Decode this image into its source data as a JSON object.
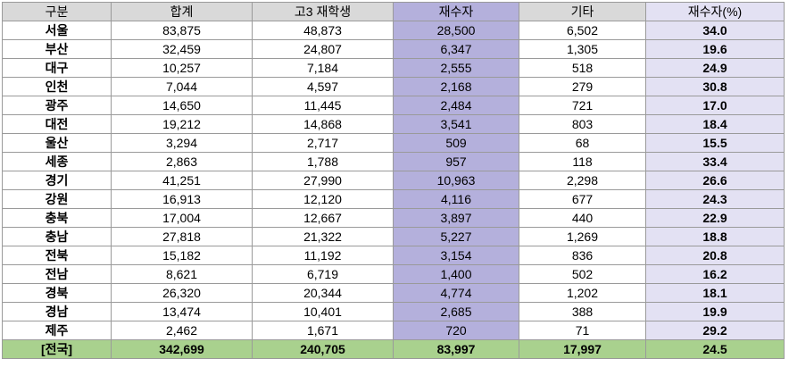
{
  "table": {
    "headers": [
      "구분",
      "합계",
      "고3 재학생",
      "재수자",
      "기타",
      "재수자(%)"
    ],
    "rows": [
      [
        "서울",
        "83,875",
        "48,873",
        "28,500",
        "6,502",
        "34.0"
      ],
      [
        "부산",
        "32,459",
        "24,807",
        "6,347",
        "1,305",
        "19.6"
      ],
      [
        "대구",
        "10,257",
        "7,184",
        "2,555",
        "518",
        "24.9"
      ],
      [
        "인천",
        "7,044",
        "4,597",
        "2,168",
        "279",
        "30.8"
      ],
      [
        "광주",
        "14,650",
        "11,445",
        "2,484",
        "721",
        "17.0"
      ],
      [
        "대전",
        "19,212",
        "14,868",
        "3,541",
        "803",
        "18.4"
      ],
      [
        "울산",
        "3,294",
        "2,717",
        "509",
        "68",
        "15.5"
      ],
      [
        "세종",
        "2,863",
        "1,788",
        "957",
        "118",
        "33.4"
      ],
      [
        "경기",
        "41,251",
        "27,990",
        "10,963",
        "2,298",
        "26.6"
      ],
      [
        "강원",
        "16,913",
        "12,120",
        "4,116",
        "677",
        "24.3"
      ],
      [
        "충북",
        "17,004",
        "12,667",
        "3,897",
        "440",
        "22.9"
      ],
      [
        "충남",
        "27,818",
        "21,322",
        "5,227",
        "1,269",
        "18.8"
      ],
      [
        "전북",
        "15,182",
        "11,192",
        "3,154",
        "836",
        "20.8"
      ],
      [
        "전남",
        "8,621",
        "6,719",
        "1,400",
        "502",
        "16.2"
      ],
      [
        "경북",
        "26,320",
        "20,344",
        "4,774",
        "1,202",
        "18.1"
      ],
      [
        "경남",
        "13,474",
        "10,401",
        "2,685",
        "388",
        "19.9"
      ],
      [
        "제주",
        "2,462",
        "1,671",
        "720",
        "71",
        "29.2"
      ]
    ],
    "total": [
      "[전국]",
      "342,699",
      "240,705",
      "83,997",
      "17,997",
      "24.5"
    ]
  },
  "colors": {
    "header_bg": "#d9d9d9",
    "repeat_col_bg": "#b4b0dc",
    "rate_col_bg": "#e3e1f3",
    "total_row_bg": "#a9d18e"
  }
}
